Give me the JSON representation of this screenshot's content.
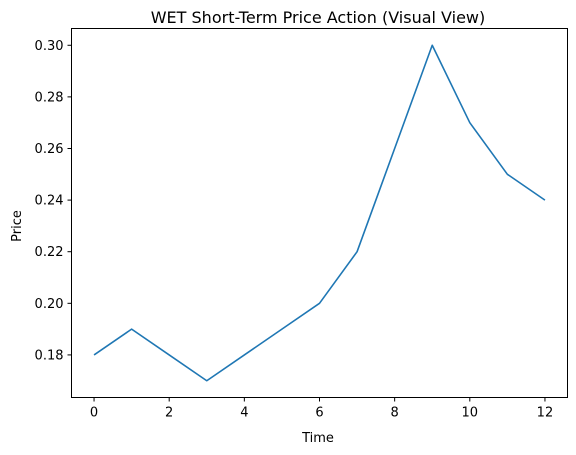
{
  "chart_data": {
    "type": "line",
    "title": "WET Short-Term Price Action (Visual View)",
    "xlabel": "Time",
    "ylabel": "Price",
    "xlim": [
      -0.6,
      12.6
    ],
    "ylim": [
      0.1635,
      0.3065
    ],
    "x_ticks": [
      0,
      2,
      4,
      6,
      8,
      10,
      12
    ],
    "x_tick_labels": [
      "0",
      "2",
      "4",
      "6",
      "8",
      "10",
      "12"
    ],
    "y_ticks": [
      0.18,
      0.2,
      0.22,
      0.24,
      0.26,
      0.28,
      0.3
    ],
    "y_tick_labels": [
      "0.18",
      "0.20",
      "0.22",
      "0.24",
      "0.26",
      "0.28",
      "0.30"
    ],
    "grid": false,
    "series": [
      {
        "color": "#1f77b4",
        "x": [
          0,
          1,
          2,
          3,
          4,
          5,
          6,
          7,
          8,
          9,
          10,
          11,
          12
        ],
        "y": [
          0.18,
          0.19,
          0.18,
          0.17,
          0.18,
          0.19,
          0.2,
          0.22,
          0.26,
          0.3,
          0.27,
          0.25,
          0.24
        ]
      }
    ]
  }
}
